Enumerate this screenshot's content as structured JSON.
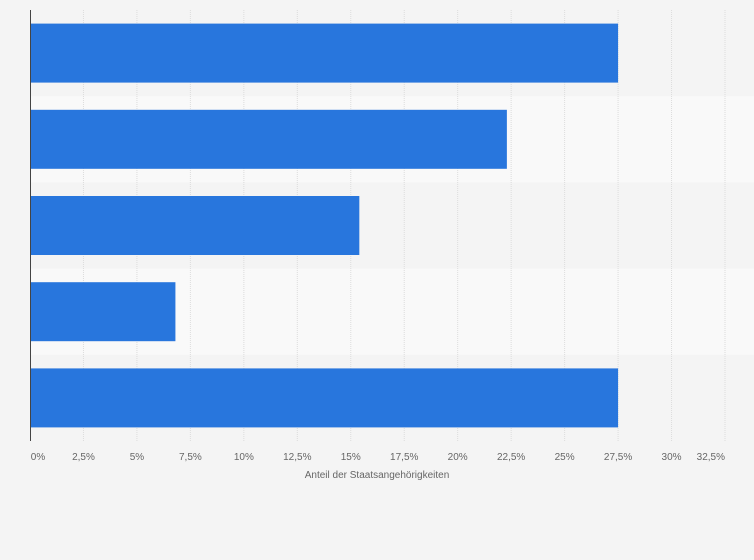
{
  "chart_data": {
    "type": "bar",
    "orientation": "horizontal",
    "categories": [
      "",
      "",
      "",
      "",
      ""
    ],
    "values": [
      27.5,
      22.3,
      15.4,
      6.8,
      27.5
    ],
    "title": "",
    "xlabel": "Anteil der Staatsangehörigkeiten",
    "ylabel": "",
    "xlim": [
      0,
      32.5
    ],
    "x_ticks": [
      "0%",
      "2,5%",
      "5%",
      "7,5%",
      "10%",
      "12,5%",
      "15%",
      "17,5%",
      "20%",
      "22,5%",
      "25%",
      "27,5%",
      "30%",
      "32,5%"
    ],
    "grid": true,
    "legend": "none",
    "colors": {
      "bar": "#2876dd",
      "band_light": "#f9f9f9",
      "band_dark": "#f4f4f4",
      "grid": "#dcdcdc",
      "axis": "#444444",
      "text": "#666666"
    }
  }
}
